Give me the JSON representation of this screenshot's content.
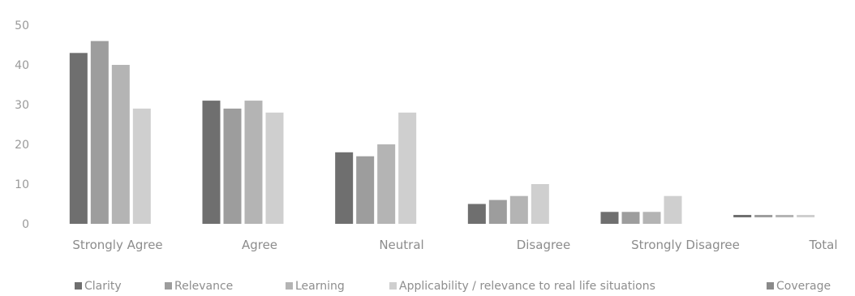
{
  "chart_data": {
    "type": "bar",
    "title": "",
    "xlabel": "",
    "ylabel": "",
    "ylim": [
      0,
      50
    ],
    "yticks": [
      "0",
      "10",
      "20",
      "30",
      "40",
      "50"
    ],
    "categories": [
      "Strongly Agree",
      "Agree",
      "Neutral",
      "Disagree",
      "Strongly Disagree",
      "Total"
    ],
    "series": [
      {
        "name": "Clarity",
        "values": [
          43,
          31,
          18,
          5,
          3,
          null
        ],
        "color": "#6f6f6f"
      },
      {
        "name": "Relevance",
        "values": [
          46,
          29,
          17,
          6,
          3,
          null
        ],
        "color": "#9d9d9d"
      },
      {
        "name": "Learning",
        "values": [
          40,
          31,
          20,
          7,
          3,
          null
        ],
        "color": "#b4b4b4"
      },
      {
        "name": "Applicability / relevance to real life situations",
        "values": [
          29,
          28,
          28,
          10,
          7,
          null
        ],
        "color": "#cfcfcf"
      },
      {
        "name": "Coverage",
        "values": [
          null,
          null,
          null,
          null,
          null,
          null
        ],
        "color": "#8a8a8a"
      }
    ],
    "grid": false,
    "legend_position": "bottom"
  }
}
